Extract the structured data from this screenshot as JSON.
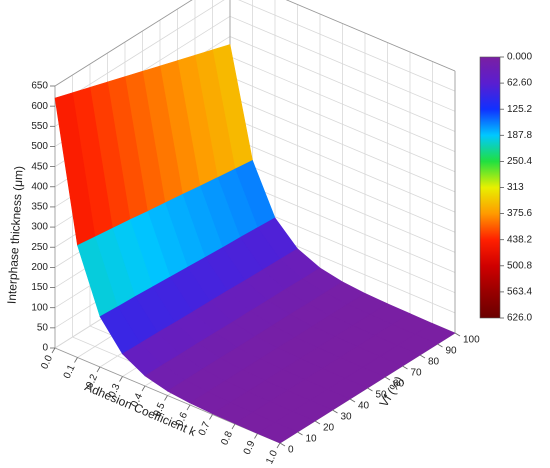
{
  "chart_data": {
    "type": "surface",
    "x_label": "Adhesion Coefficient k",
    "y_label": "Vf (%)",
    "z_label": "Interphase thickness (μm)",
    "x": [
      0,
      0.1,
      0.2,
      0.3,
      0.4,
      0.5,
      0.6,
      0.7,
      0.8,
      0.9,
      1
    ],
    "y": [
      0,
      10,
      20,
      30,
      40,
      50,
      60,
      70,
      80,
      90,
      100
    ],
    "z": [
      [
        620,
        606,
        592,
        578,
        564,
        550,
        536,
        522,
        508,
        494,
        480
      ],
      [
        278,
        272,
        266,
        260,
        253,
        247,
        241,
        234,
        228,
        222,
        216
      ],
      [
        125,
        122,
        120,
        117,
        114,
        111,
        108,
        105,
        103,
        100,
        97
      ],
      [
        56,
        55,
        54,
        52,
        51,
        50,
        49,
        47,
        46,
        45,
        44
      ],
      [
        25,
        25,
        24,
        24,
        23,
        22,
        22,
        21,
        21,
        20,
        20
      ],
      [
        11,
        11,
        11,
        11,
        10,
        10,
        10,
        10,
        9,
        9,
        9
      ],
      [
        5,
        5,
        5,
        5,
        5,
        5,
        4,
        4,
        4,
        4,
        4
      ],
      [
        2,
        2,
        2,
        2,
        2,
        2,
        2,
        2,
        2,
        2,
        2
      ],
      [
        1,
        1,
        1,
        1,
        1,
        1,
        1,
        1,
        1,
        1,
        1
      ],
      [
        0,
        0,
        0,
        0,
        0,
        0,
        0,
        0,
        0,
        0,
        0
      ],
      [
        0,
        0,
        0,
        0,
        0,
        0,
        0,
        0,
        0,
        0,
        0
      ]
    ],
    "xlim": [
      0,
      1
    ],
    "ylim": [
      0,
      100
    ],
    "zlim": [
      0,
      650
    ],
    "xticks": [
      {
        "value": 0,
        "label": "0.0"
      },
      0.1,
      0.2,
      0.3,
      0.4,
      0.5,
      0.6,
      0.7,
      0.8,
      0.9,
      {
        "value": 1,
        "label": "1.0"
      }
    ],
    "yticks": [
      0,
      10,
      20,
      30,
      40,
      50,
      60,
      70,
      80,
      90,
      100
    ],
    "zticks": [
      0,
      50,
      100,
      150,
      200,
      250,
      300,
      350,
      400,
      450,
      500,
      550,
      600,
      650
    ],
    "clim": [
      0,
      626
    ],
    "colormap": [
      "#7a1fa2",
      "#5a1ed0",
      "#1030ff",
      "#00c8ff",
      "#20e040",
      "#e8f000",
      "#ff9a00",
      "#ff2000",
      "#d00000",
      "#980000",
      "#6a0000"
    ],
    "colorbar_ticks": [
      {
        "value": 0,
        "label": "0.000"
      },
      {
        "value": 62.6,
        "label": "62.60"
      },
      125.2,
      187.8,
      250.4,
      313,
      375.6,
      438.2,
      500.8,
      563.4,
      {
        "value": 626,
        "label": "626.0"
      }
    ],
    "grid": true
  }
}
